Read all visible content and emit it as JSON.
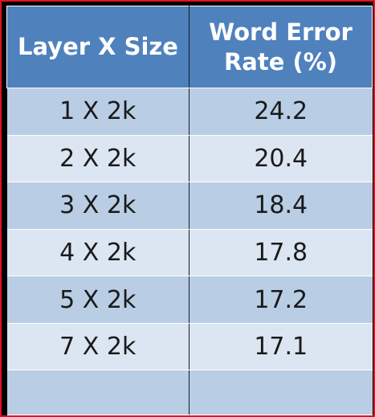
{
  "chart_data": {
    "type": "table",
    "columns": [
      "Layer X Size",
      "Word Error Rate (%)"
    ],
    "rows": [
      [
        "1 X 2k",
        "24.2"
      ],
      [
        "2 X 2k",
        "20.4"
      ],
      [
        "3 X 2k",
        "18.4"
      ],
      [
        "4 X 2k",
        "17.8"
      ],
      [
        "5 X 2k",
        "17.2"
      ],
      [
        "7 X 2k",
        "17.1"
      ]
    ]
  },
  "header": {
    "col1": "Layer X Size",
    "col2_line1": "Word Error",
    "col2_line2": "Rate (%)"
  },
  "colors": {
    "header_bg": "#4f81bd",
    "row_dark": "#b9cde5",
    "row_light": "#dce6f2",
    "frame_border": "#e0141e"
  }
}
